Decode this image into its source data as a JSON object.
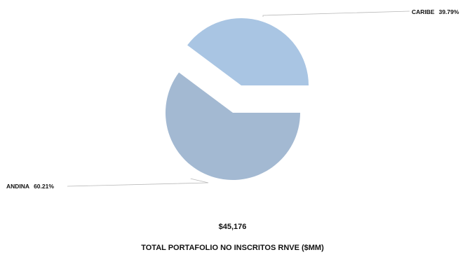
{
  "chart_data": {
    "type": "pie",
    "exploded": true,
    "slices": [
      {
        "label": "CARIBE",
        "value": 39.79,
        "value_label": "39.79%",
        "color": "#a9c5e3"
      },
      {
        "label": "ANDINA",
        "value": 60.21,
        "value_label": "60.21%",
        "color": "#a3b9d2"
      }
    ],
    "total_value": "$45,176",
    "title": "TOTAL PORTAFOLIO NO INSCRITOS RNVE ($MM)"
  }
}
